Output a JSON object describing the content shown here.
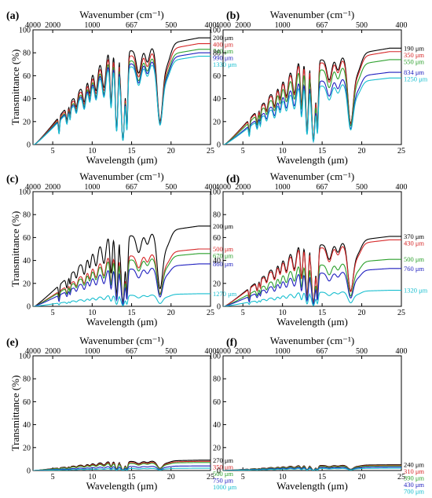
{
  "chart_data": [
    {
      "panel": "(a)",
      "type": "line",
      "xlabel": "Wavelength (μm)",
      "ylabel": "Transmittance (%)",
      "top_xlabel": "Wavenumber (cm⁻¹)",
      "xlim": [
        2.5,
        25
      ],
      "ylim": [
        0,
        100
      ],
      "xticks": [
        5,
        10,
        15,
        20,
        25
      ],
      "yticks": [
        0,
        20,
        40,
        60,
        80,
        100
      ],
      "top_ticks": [
        {
          "wn": 4000,
          "label": "4000"
        },
        {
          "wn": 2000,
          "label": "2000"
        },
        {
          "wn": 1000,
          "label": "1000"
        },
        {
          "wn": 667,
          "label": "667"
        },
        {
          "wn": 500,
          "label": "500"
        },
        {
          "wn": 400,
          "label": "400"
        }
      ],
      "series": [
        {
          "name": "200 μm",
          "color": "#000000",
          "amp": 93
        },
        {
          "name": "400 μm",
          "color": "#d62728",
          "amp": 88
        },
        {
          "name": "740 μm",
          "color": "#2ca02c",
          "amp": 83
        },
        {
          "name": "990 μm",
          "color": "#1f1fbf",
          "amp": 80
        },
        {
          "name": "1330 μm",
          "color": "#17becf",
          "amp": 77
        }
      ]
    },
    {
      "panel": "(b)",
      "type": "line",
      "xlabel": "Wavelength (μm)",
      "ylabel": "",
      "top_xlabel": "Wavenumber (cm⁻¹)",
      "xlim": [
        2.5,
        25
      ],
      "ylim": [
        0,
        100
      ],
      "xticks": [
        5,
        10,
        15,
        20,
        25
      ],
      "yticks": [
        0,
        20,
        40,
        60,
        80,
        100
      ],
      "top_ticks": [
        {
          "wn": 4000,
          "label": "4000"
        },
        {
          "wn": 2000,
          "label": "2000"
        },
        {
          "wn": 1000,
          "label": "1000"
        },
        {
          "wn": 667,
          "label": "667"
        },
        {
          "wn": 500,
          "label": "500"
        },
        {
          "wn": 400,
          "label": "400"
        }
      ],
      "series": [
        {
          "name": "190 μm",
          "color": "#000000",
          "amp": 84
        },
        {
          "name": "350 μm",
          "color": "#d62728",
          "amp": 81
        },
        {
          "name": "550 μm",
          "color": "#2ca02c",
          "amp": 74
        },
        {
          "name": "834 μm",
          "color": "#1f1fbf",
          "amp": 63
        },
        {
          "name": "1250 μm",
          "color": "#17becf",
          "amp": 58
        }
      ]
    },
    {
      "panel": "(c)",
      "type": "line",
      "xlabel": "Wavelength (μm)",
      "ylabel": "Transmittance (%)",
      "top_xlabel": "Wavenumber (cm⁻¹)",
      "xlim": [
        2.5,
        25
      ],
      "ylim": [
        0,
        100
      ],
      "xticks": [
        5,
        10,
        15,
        20,
        25
      ],
      "yticks": [
        0,
        20,
        40,
        60,
        80,
        100
      ],
      "top_ticks": [
        {
          "wn": 4000,
          "label": "4000"
        },
        {
          "wn": 2000,
          "label": "2000"
        },
        {
          "wn": 1000,
          "label": "1000"
        },
        {
          "wn": 667,
          "label": "667"
        },
        {
          "wn": 500,
          "label": "500"
        },
        {
          "wn": 400,
          "label": "400"
        }
      ],
      "series": [
        {
          "name": "200 μm",
          "color": "#000000",
          "amp": 70
        },
        {
          "name": "500 μm",
          "color": "#d62728",
          "amp": 50
        },
        {
          "name": "670 μm",
          "color": "#2ca02c",
          "amp": 46
        },
        {
          "name": "860 μm",
          "color": "#1f1fbf",
          "amp": 37
        },
        {
          "name": "1270 μm",
          "color": "#17becf",
          "amp": 11
        }
      ]
    },
    {
      "panel": "(d)",
      "type": "line",
      "xlabel": "Wavelength (μm)",
      "ylabel": "",
      "top_xlabel": "Wavenumber (cm⁻¹)",
      "xlim": [
        2.5,
        25
      ],
      "ylim": [
        0,
        100
      ],
      "xticks": [
        5,
        10,
        15,
        20,
        25
      ],
      "yticks": [
        0,
        20,
        40,
        60,
        80,
        100
      ],
      "top_ticks": [
        {
          "wn": 4000,
          "label": "4000"
        },
        {
          "wn": 2000,
          "label": "2000"
        },
        {
          "wn": 1000,
          "label": "1000"
        },
        {
          "wn": 667,
          "label": "667"
        },
        {
          "wn": 500,
          "label": "500"
        },
        {
          "wn": 400,
          "label": "400"
        }
      ],
      "series": [
        {
          "name": "370 μm",
          "color": "#000000",
          "amp": 61
        },
        {
          "name": "430 μm",
          "color": "#d62728",
          "amp": 58
        },
        {
          "name": "500 μm",
          "color": "#2ca02c",
          "amp": 41
        },
        {
          "name": "760 μm",
          "color": "#1f1fbf",
          "amp": 33
        },
        {
          "name": "1320 μm",
          "color": "#17becf",
          "amp": 14
        }
      ]
    },
    {
      "panel": "(e)",
      "type": "line",
      "xlabel": "Wavelength (μm)",
      "ylabel": "Transmittance (%)",
      "top_xlabel": "Wavenumber (cm⁻¹)",
      "xlim": [
        2.5,
        25
      ],
      "ylim": [
        0,
        100
      ],
      "xticks": [
        5,
        10,
        15,
        20,
        25
      ],
      "yticks": [
        0,
        20,
        40,
        60,
        80,
        100
      ],
      "top_ticks": [
        {
          "wn": 4000,
          "label": "4000"
        },
        {
          "wn": 2000,
          "label": "2000"
        },
        {
          "wn": 1000,
          "label": "1000"
        },
        {
          "wn": 667,
          "label": "667"
        },
        {
          "wn": 500,
          "label": "500"
        },
        {
          "wn": 400,
          "label": "400"
        }
      ],
      "series": [
        {
          "name": "270 μm",
          "color": "#000000",
          "amp": 9
        },
        {
          "name": "350 μm",
          "color": "#d62728",
          "amp": 8
        },
        {
          "name": "500 μm",
          "color": "#2ca02c",
          "amp": 7
        },
        {
          "name": "750 μm",
          "color": "#1f1fbf",
          "amp": 4
        },
        {
          "name": "1000 μm",
          "color": "#17becf",
          "amp": 2
        }
      ]
    },
    {
      "panel": "(f)",
      "type": "line",
      "xlabel": "Wavelength (μm)",
      "ylabel": "",
      "top_xlabel": "Wavenumber (cm⁻¹)",
      "xlim": [
        2.5,
        25
      ],
      "ylim": [
        0,
        100
      ],
      "xticks": [
        5,
        10,
        15,
        20,
        25
      ],
      "yticks": [
        0,
        20,
        40,
        60,
        80,
        100
      ],
      "top_ticks": [
        {
          "wn": 4000,
          "label": "4000"
        },
        {
          "wn": 2000,
          "label": "2000"
        },
        {
          "wn": 1000,
          "label": "1000"
        },
        {
          "wn": 667,
          "label": "667"
        },
        {
          "wn": 500,
          "label": "500"
        },
        {
          "wn": 400,
          "label": "400"
        }
      ],
      "series": [
        {
          "name": "240 μm",
          "color": "#000000",
          "amp": 5
        },
        {
          "name": "310 μm",
          "color": "#d62728",
          "amp": 4.5
        },
        {
          "name": "390 μm",
          "color": "#2ca02c",
          "amp": 4
        },
        {
          "name": "430 μm",
          "color": "#1f1fbf",
          "amp": 3
        },
        {
          "name": "700 μm",
          "color": "#17becf",
          "amp": 2
        }
      ]
    }
  ]
}
